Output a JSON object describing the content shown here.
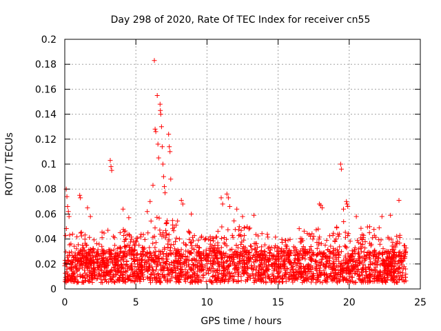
{
  "chart_data": {
    "type": "scatter",
    "title": "Day 298 of 2020, Rate Of TEC Index for receiver cn55",
    "xlabel": "GPS time / hours",
    "ylabel": "ROTI / TECUs",
    "xlim": [
      0,
      25
    ],
    "ylim": [
      0,
      0.2
    ],
    "x_ticks": [
      0,
      5,
      10,
      15,
      20,
      25
    ],
    "y_ticks": [
      0,
      0.02,
      0.04,
      0.06,
      0.08,
      0.1,
      0.12,
      0.14,
      0.16,
      0.18,
      0.2
    ],
    "grid": true,
    "marker": "+",
    "color": "#ff0000",
    "series": [
      {
        "name": "ROTI",
        "x_range": [
          0,
          24
        ],
        "baseline": [
          0.005,
          0.03
        ],
        "points": [
          [
            0.1,
            0.08
          ],
          [
            0.15,
            0.074
          ],
          [
            0.2,
            0.066
          ],
          [
            0.25,
            0.062
          ],
          [
            0.3,
            0.058
          ],
          [
            1.05,
            0.075
          ],
          [
            1.1,
            0.073
          ],
          [
            1.6,
            0.065
          ],
          [
            1.8,
            0.058
          ],
          [
            3.2,
            0.103
          ],
          [
            3.25,
            0.098
          ],
          [
            3.3,
            0.095
          ],
          [
            4.1,
            0.064
          ],
          [
            4.5,
            0.057
          ],
          [
            5.8,
            0.062
          ],
          [
            6.0,
            0.07
          ],
          [
            6.2,
            0.083
          ],
          [
            6.3,
            0.183
          ],
          [
            6.35,
            0.128
          ],
          [
            6.4,
            0.126
          ],
          [
            6.5,
            0.155
          ],
          [
            6.55,
            0.116
          ],
          [
            6.6,
            0.105
          ],
          [
            6.7,
            0.148
          ],
          [
            6.72,
            0.143
          ],
          [
            6.75,
            0.14
          ],
          [
            6.8,
            0.13
          ],
          [
            6.85,
            0.114
          ],
          [
            6.9,
            0.1
          ],
          [
            6.95,
            0.09
          ],
          [
            7.0,
            0.082
          ],
          [
            7.05,
            0.077
          ],
          [
            7.3,
            0.124
          ],
          [
            7.35,
            0.114
          ],
          [
            7.4,
            0.11
          ],
          [
            7.45,
            0.088
          ],
          [
            8.2,
            0.071
          ],
          [
            8.3,
            0.068
          ],
          [
            8.9,
            0.06
          ],
          [
            11.0,
            0.073
          ],
          [
            11.1,
            0.068
          ],
          [
            11.4,
            0.076
          ],
          [
            11.5,
            0.073
          ],
          [
            11.6,
            0.066
          ],
          [
            12.1,
            0.064
          ],
          [
            12.5,
            0.058
          ],
          [
            13.3,
            0.059
          ],
          [
            17.9,
            0.068
          ],
          [
            18.0,
            0.067
          ],
          [
            18.1,
            0.065
          ],
          [
            19.4,
            0.1
          ],
          [
            19.45,
            0.096
          ],
          [
            19.8,
            0.07
          ],
          [
            19.85,
            0.068
          ],
          [
            19.9,
            0.066
          ],
          [
            19.6,
            0.064
          ],
          [
            20.5,
            0.058
          ],
          [
            22.3,
            0.058
          ],
          [
            22.9,
            0.059
          ],
          [
            23.5,
            0.071
          ]
        ],
        "envelope": [
          [
            0,
            0.05
          ],
          [
            0.5,
            0.045
          ],
          [
            1,
            0.05
          ],
          [
            1.5,
            0.045
          ],
          [
            2,
            0.04
          ],
          [
            2.5,
            0.045
          ],
          [
            3,
            0.05
          ],
          [
            3.5,
            0.045
          ],
          [
            4,
            0.05
          ],
          [
            4.5,
            0.045
          ],
          [
            5,
            0.04
          ],
          [
            5.5,
            0.048
          ],
          [
            6,
            0.055
          ],
          [
            6.5,
            0.06
          ],
          [
            7,
            0.06
          ],
          [
            7.5,
            0.055
          ],
          [
            8,
            0.06
          ],
          [
            8.5,
            0.05
          ],
          [
            9,
            0.045
          ],
          [
            9.5,
            0.045
          ],
          [
            10,
            0.04
          ],
          [
            10.5,
            0.045
          ],
          [
            11,
            0.055
          ],
          [
            11.5,
            0.06
          ],
          [
            12,
            0.055
          ],
          [
            12.5,
            0.05
          ],
          [
            13,
            0.05
          ],
          [
            13.5,
            0.045
          ],
          [
            14,
            0.045
          ],
          [
            14.5,
            0.045
          ],
          [
            15,
            0.04
          ],
          [
            15.5,
            0.04
          ],
          [
            16,
            0.045
          ],
          [
            16.5,
            0.05
          ],
          [
            17,
            0.045
          ],
          [
            17.5,
            0.05
          ],
          [
            18,
            0.05
          ],
          [
            18.5,
            0.045
          ],
          [
            19,
            0.05
          ],
          [
            19.5,
            0.055
          ],
          [
            20,
            0.05
          ],
          [
            20.5,
            0.05
          ],
          [
            21,
            0.05
          ],
          [
            21.5,
            0.05
          ],
          [
            22,
            0.055
          ],
          [
            22.5,
            0.055
          ],
          [
            23,
            0.05
          ],
          [
            23.5,
            0.045
          ],
          [
            24,
            0.04
          ]
        ]
      }
    ]
  }
}
